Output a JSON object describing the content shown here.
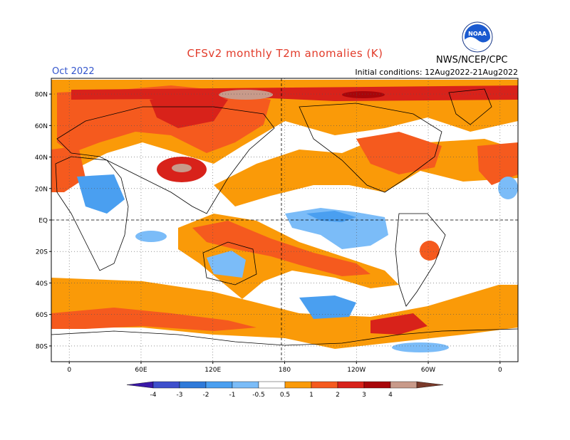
{
  "header": {
    "title": "CFSv2 monthly T2m anomalies (K)",
    "month": "Oct 2022",
    "initial_conditions": "Initial conditions: 12Aug2022-21Aug2022",
    "agency": "NWS/NCEP/CPC",
    "logo": {
      "text": "NOAA",
      "icon": "noaa-logo-icon"
    }
  },
  "map": {
    "lat_labels": [
      "80N",
      "60N",
      "40N",
      "20N",
      "EQ",
      "20S",
      "40S",
      "60S",
      "80S"
    ],
    "lat_values": [
      80,
      60,
      40,
      20,
      0,
      -20,
      -40,
      -60,
      -80
    ],
    "lon_labels": [
      "0",
      "60E",
      "120E",
      "180",
      "120W",
      "60W",
      "0"
    ],
    "lon_values": [
      0,
      60,
      120,
      180,
      240,
      300,
      360
    ],
    "lon_range": [
      -15,
      375
    ],
    "lat_range": [
      -90,
      90
    ],
    "grid": "dotted"
  },
  "colorbar": {
    "tick_labels": [
      "-4",
      "-3",
      "-2",
      "-1",
      "-0.5",
      "0.5",
      "1",
      "2",
      "3",
      "4"
    ],
    "colors": [
      "#3a18a8",
      "#3e4fcc",
      "#2f7ad9",
      "#4a9ff0",
      "#7bbcf8",
      "#ffffff",
      "#fa9a08",
      "#f55a1e",
      "#d8221a",
      "#a8060a",
      "#c89a8a",
      "#7a3a2a"
    ]
  },
  "colors": {
    "warm1": "#fa9a08",
    "warm2": "#f55a1e",
    "warm3": "#d8221a",
    "warm4": "#a8060a",
    "warm5": "#c89a8a",
    "cool1": "#7bbcf8",
    "cool2": "#4a9ff0",
    "cool3": "#2f7ad9",
    "title": "#e23b2a",
    "month": "#3355cc"
  }
}
